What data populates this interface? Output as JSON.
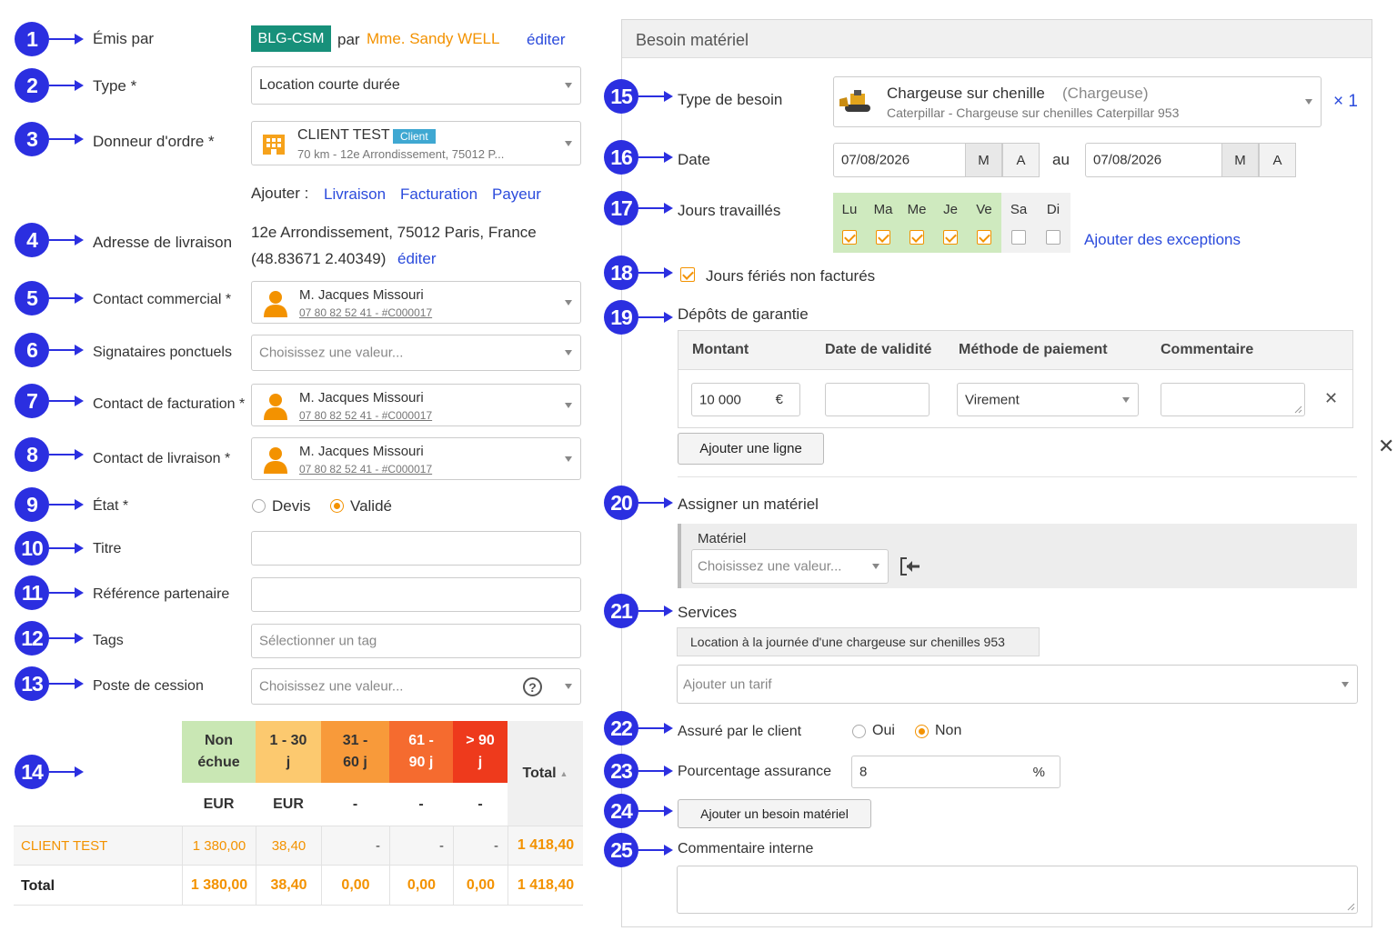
{
  "left": {
    "emis_par": {
      "label": "Émis par",
      "code": "BLG-CSM",
      "par": "par",
      "name": "Mme. Sandy WELL",
      "edit": "éditer"
    },
    "type": {
      "label": "Type *",
      "value": "Location courte durée"
    },
    "donneur": {
      "label": "Donneur d'ordre *",
      "name": "CLIENT TEST",
      "tag": "Client",
      "address": "70 km - 12e Arrondissement, 75012 P..."
    },
    "ajouter": {
      "label": "Ajouter :",
      "links": [
        "Livraison",
        "Facturation",
        "Payeur"
      ]
    },
    "adresse": {
      "label": "Adresse de livraison",
      "line1": "12e Arrondissement, 75012 Paris, France",
      "coords": "(48.83671 2.40349)",
      "edit": "éditer"
    },
    "contact_commercial": {
      "label": "Contact commercial *",
      "name": "M. Jacques Missouri",
      "sub": "07 80 82 52 41 - #C000017"
    },
    "signataires": {
      "label": "Signataires ponctuels",
      "placeholder": "Choisissez une valeur..."
    },
    "contact_facturation": {
      "label": "Contact de facturation *",
      "name": "M. Jacques Missouri",
      "sub": "07 80 82 52 41 - #C000017"
    },
    "contact_livraison": {
      "label": "Contact de livraison *",
      "name": "M. Jacques Missouri",
      "sub": "07 80 82 52 41 - #C000017"
    },
    "etat": {
      "label": "État *",
      "options": [
        "Devis",
        "Validé"
      ],
      "selected": "Validé"
    },
    "titre": {
      "label": "Titre",
      "value": ""
    },
    "reference": {
      "label": "Référence partenaire",
      "value": ""
    },
    "tags": {
      "label": "Tags",
      "placeholder": "Sélectionner un tag"
    },
    "poste": {
      "label": "Poste de cession",
      "placeholder": "Choisissez une valeur...",
      "help": "?"
    },
    "aging": {
      "headers": [
        {
          "l1": "Non",
          "l2": "échue",
          "color": "#c9e7b4"
        },
        {
          "l1": "1 - 30",
          "l2": "j",
          "color": "#fcc96f"
        },
        {
          "l1": "31 -",
          "l2": "60 j",
          "color": "#f89a3a"
        },
        {
          "l1": "61 -",
          "l2": "90 j",
          "color": "#f56b2f"
        },
        {
          "l1": "> 90",
          "l2": "j",
          "color": "#ee3a1c"
        }
      ],
      "total_header": "Total",
      "sort_icon": "▲",
      "units": [
        "EUR",
        "EUR",
        "-",
        "-",
        "-"
      ],
      "rows": [
        {
          "name": "CLIENT TEST",
          "values": [
            "1 380,00",
            "38,40",
            "-",
            "-",
            "-"
          ],
          "total": "1 418,40"
        },
        {
          "name": "Total",
          "values": [
            "1 380,00",
            "38,40",
            "0,00",
            "0,00",
            "0,00"
          ],
          "total": "1 418,40"
        }
      ]
    }
  },
  "right": {
    "panel_title": "Besoin matériel",
    "type_besoin": {
      "label": "Type de besoin",
      "title": "Chargeuse sur chenille",
      "category": "(Chargeuse)",
      "sub": "Caterpillar - Chargeuse sur chenilles Caterpillar 953",
      "qty": "× 1"
    },
    "date": {
      "label": "Date",
      "from": "07/08/2026",
      "to": "07/08/2026",
      "au": "au",
      "m": "M",
      "a": "A"
    },
    "jours": {
      "label": "Jours travaillés",
      "days": [
        "Lu",
        "Ma",
        "Me",
        "Je",
        "Ve",
        "Sa",
        "Di"
      ],
      "checked": [
        true,
        true,
        true,
        true,
        true,
        false,
        false
      ],
      "exceptions": "Ajouter des exceptions"
    },
    "feries": {
      "label": "Jours fériés non facturés",
      "checked": true
    },
    "depots": {
      "label": "Dépôts de garantie",
      "headers": [
        "Montant",
        "Date de validité",
        "Méthode de paiement",
        "Commentaire"
      ],
      "montant": "10 000",
      "currency": "€",
      "methode": "Virement",
      "add": "Ajouter une ligne"
    },
    "assigner": {
      "label": "Assigner un matériel",
      "materiel_label": "Matériel",
      "placeholder": "Choisissez une valeur..."
    },
    "services": {
      "label": "Services",
      "tag": "Location à la journée d'une chargeuse sur chenilles 953",
      "placeholder": "Ajouter un tarif"
    },
    "assure": {
      "label": "Assuré par le client",
      "options": [
        "Oui",
        "Non"
      ],
      "selected": "Non"
    },
    "pourcentage": {
      "label": "Pourcentage assurance",
      "value": "8",
      "unit": "%"
    },
    "add_besoin": "Ajouter un besoin matériel",
    "commentaire": {
      "label": "Commentaire interne",
      "value": ""
    }
  },
  "badges": [
    "1",
    "2",
    "3",
    "4",
    "5",
    "6",
    "7",
    "8",
    "9",
    "10",
    "11",
    "12",
    "13",
    "14",
    "15",
    "16",
    "17",
    "18",
    "19",
    "20",
    "21",
    "22",
    "23",
    "24",
    "25"
  ],
  "close_icon": "✕"
}
